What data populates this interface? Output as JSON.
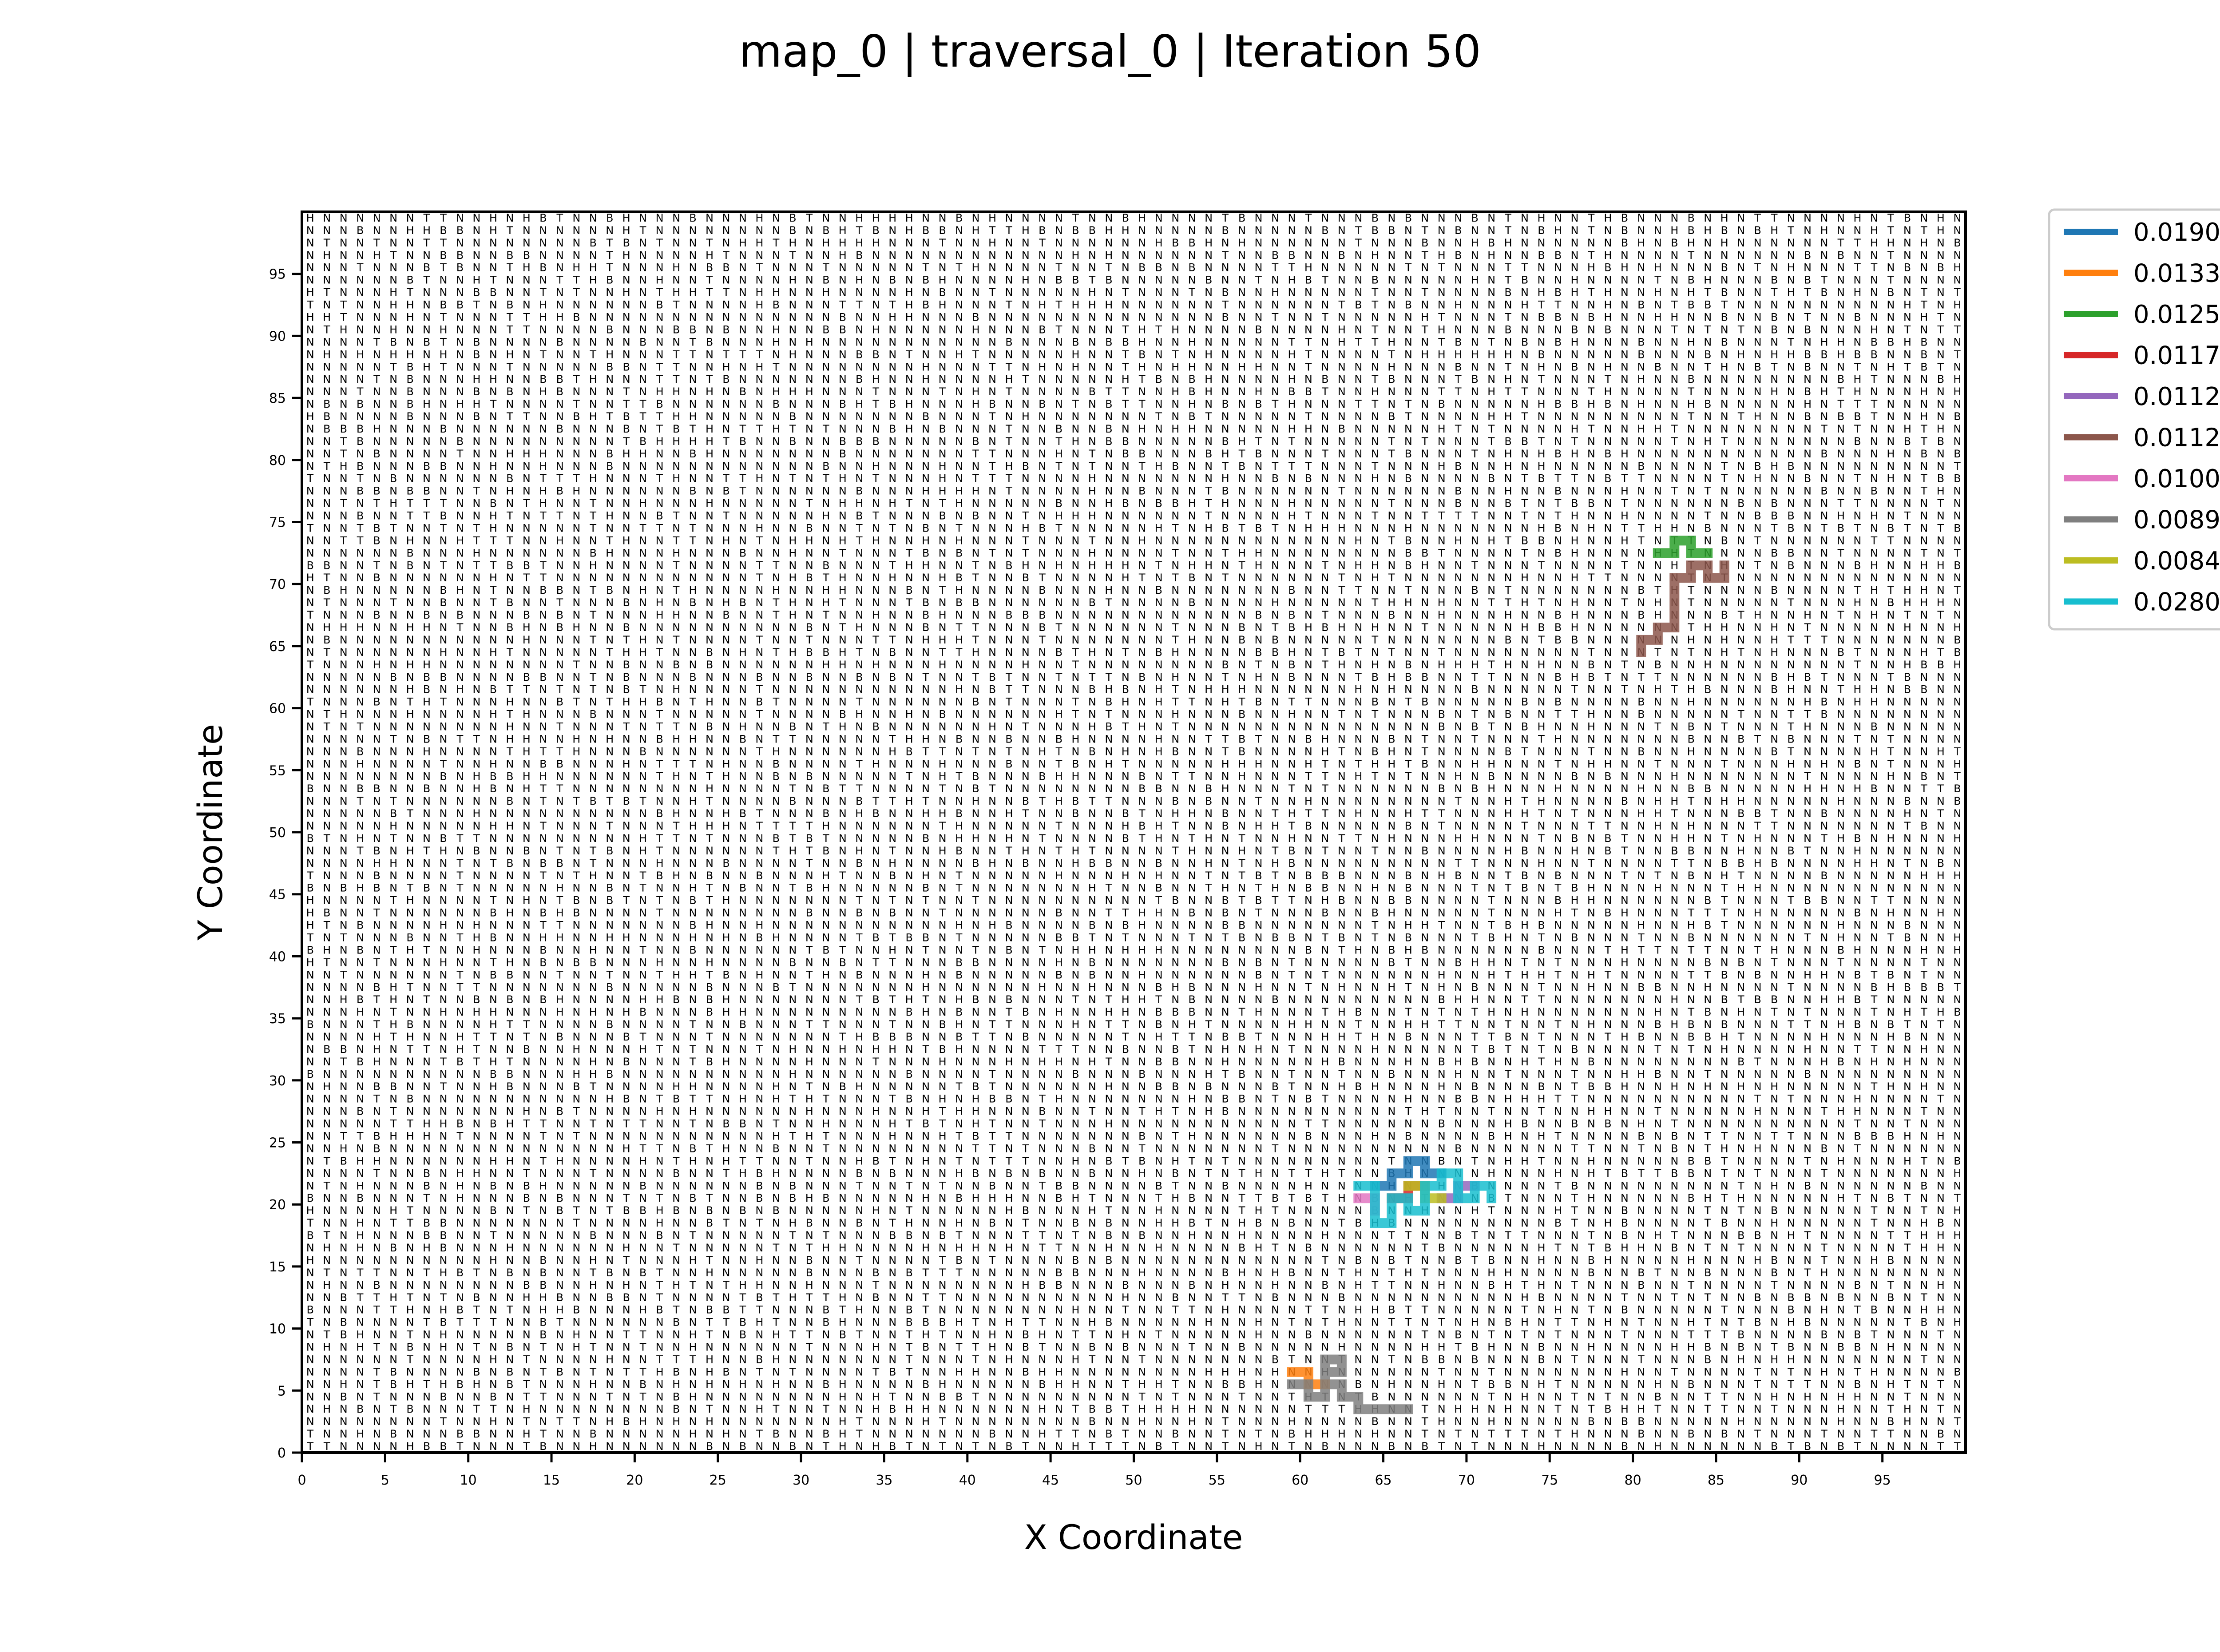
{
  "chart_data": {
    "type": "line",
    "title": "map_0 | traversal_0 | Iteration 50",
    "xlabel": "X Coordinate",
    "ylabel": "Y Coordinate",
    "xlim": [
      0,
      100
    ],
    "ylim": [
      0,
      100
    ],
    "x_ticks": [
      0,
      5,
      10,
      15,
      20,
      25,
      30,
      35,
      40,
      45,
      50,
      55,
      60,
      65,
      70,
      75,
      80,
      85,
      90,
      95
    ],
    "y_ticks": [
      0,
      5,
      10,
      15,
      20,
      25,
      30,
      35,
      40,
      45,
      50,
      55,
      60,
      65,
      70,
      75,
      80,
      85,
      90,
      95
    ],
    "grid": false,
    "legend_position": "outside-right-top",
    "background_grid": {
      "description_letters": [
        "N",
        "T",
        "H",
        "B"
      ],
      "size": [
        100,
        100
      ],
      "seed": 50
    },
    "series": [
      {
        "name": "0.0190",
        "color": "#1f77b4",
        "points": [
          [
            64,
            21
          ],
          [
            65,
            21
          ],
          [
            65,
            22
          ],
          [
            66,
            22
          ],
          [
            66,
            23
          ],
          [
            67,
            23
          ],
          [
            67,
            22
          ],
          [
            68,
            22
          ]
        ]
      },
      {
        "name": "0.0133",
        "color": "#ff7f0e",
        "points": [
          [
            59,
            6
          ],
          [
            60,
            6
          ],
          [
            60,
            5
          ],
          [
            61,
            5
          ]
        ]
      },
      {
        "name": "0.0125",
        "color": "#2ca02c",
        "points": [
          [
            81,
            72
          ],
          [
            82,
            72
          ],
          [
            82,
            73
          ],
          [
            83,
            73
          ],
          [
            83,
            72
          ],
          [
            84,
            72
          ]
        ]
      },
      {
        "name": "0.0117",
        "color": "#d62728",
        "points": [
          [
            65,
            20
          ],
          [
            66,
            20
          ],
          [
            66,
            21
          ],
          [
            67,
            21
          ]
        ]
      },
      {
        "name": "0.0112",
        "color": "#9467bd",
        "points": [
          [
            68,
            20
          ],
          [
            69,
            20
          ],
          [
            69,
            21
          ],
          [
            70,
            21
          ]
        ]
      },
      {
        "name": "0.0112",
        "color": "#8c564b",
        "points": [
          [
            80,
            64
          ],
          [
            80,
            65
          ],
          [
            81,
            65
          ],
          [
            81,
            66
          ],
          [
            82,
            66
          ],
          [
            82,
            70
          ],
          [
            83,
            70
          ],
          [
            83,
            71
          ],
          [
            84,
            71
          ],
          [
            84,
            70
          ],
          [
            85,
            70
          ],
          [
            85,
            71
          ]
        ]
      },
      {
        "name": "0.0100",
        "color": "#e377c2",
        "points": [
          [
            63,
            20
          ],
          [
            64,
            20
          ],
          [
            64,
            19
          ]
        ]
      },
      {
        "name": "0.0089",
        "color": "#7f7f7f",
        "points": [
          [
            59,
            5
          ],
          [
            60,
            5
          ],
          [
            60,
            4
          ],
          [
            61,
            4
          ],
          [
            61,
            6
          ],
          [
            62,
            6
          ],
          [
            62,
            7
          ],
          [
            61,
            7
          ],
          [
            61,
            5
          ],
          [
            62,
            5
          ],
          [
            62,
            4
          ],
          [
            63,
            4
          ],
          [
            63,
            3
          ],
          [
            66,
            3
          ]
        ]
      },
      {
        "name": "0.0084",
        "color": "#bcbd22",
        "points": [
          [
            66,
            21
          ],
          [
            67,
            21
          ],
          [
            67,
            20
          ],
          [
            68,
            20
          ]
        ]
      },
      {
        "name": "0.0280",
        "color": "#17becf",
        "points": [
          [
            63,
            21
          ],
          [
            64,
            21
          ],
          [
            64,
            18
          ],
          [
            65,
            18
          ],
          [
            65,
            20
          ],
          [
            66,
            20
          ],
          [
            66,
            19
          ],
          [
            67,
            19
          ],
          [
            67,
            21
          ],
          [
            68,
            21
          ],
          [
            68,
            22
          ],
          [
            69,
            22
          ],
          [
            69,
            20
          ],
          [
            70,
            20
          ],
          [
            70,
            21
          ],
          [
            71,
            21
          ],
          [
            71,
            20
          ]
        ]
      }
    ]
  }
}
